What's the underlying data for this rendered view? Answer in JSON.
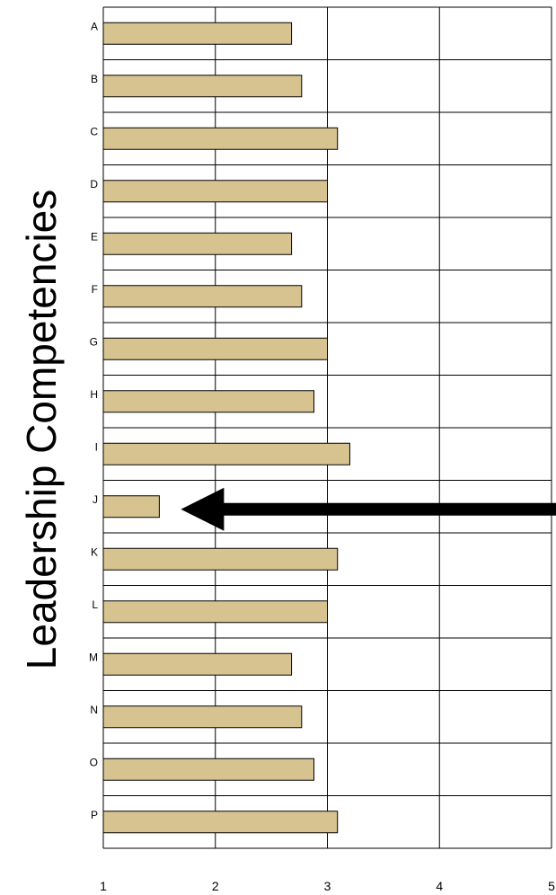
{
  "chart_data": {
    "type": "bar",
    "orientation": "horizontal",
    "ylabel": "Leadership Competencies",
    "xlabel": "",
    "title": "",
    "categories": [
      "A",
      "B",
      "C",
      "D",
      "E",
      "F",
      "G",
      "H",
      "I",
      "J",
      "K",
      "L",
      "M",
      "N",
      "O",
      "P"
    ],
    "values": [
      2.68,
      2.77,
      3.09,
      3.0,
      2.68,
      2.77,
      3.0,
      2.88,
      3.2,
      1.5,
      3.09,
      3.0,
      2.68,
      2.77,
      2.88,
      3.09
    ],
    "xlim": [
      1,
      5
    ],
    "xticks": [
      "1",
      "2",
      "3",
      "4",
      "5"
    ],
    "grid": true,
    "bar_color": "#d6c38f",
    "annotation": {
      "type": "arrow",
      "points_to": "J",
      "color": "#000000"
    }
  }
}
